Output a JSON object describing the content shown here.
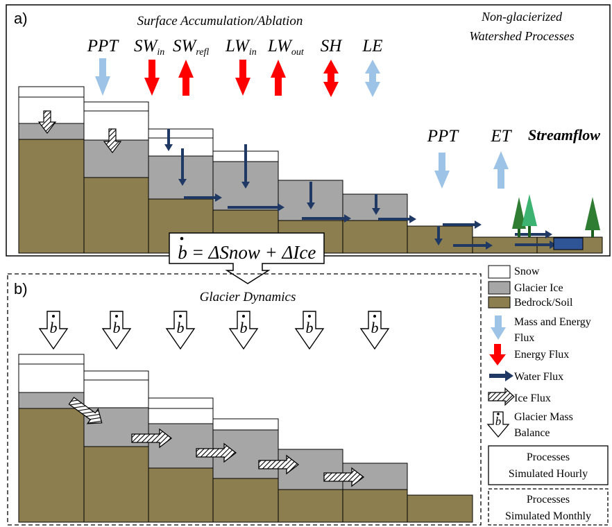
{
  "panel_a": {
    "label": "a)",
    "title": "Surface Accumulation/Ablation",
    "right_title_line1": "Non-glacierized",
    "right_title_line2": "Watershed Processes",
    "fluxes": [
      {
        "base": "PPT",
        "sub": ""
      },
      {
        "base": "SW",
        "sub": "in"
      },
      {
        "base": "SW",
        "sub": "refl"
      },
      {
        "base": "LW",
        "sub": "in"
      },
      {
        "base": "LW",
        "sub": "out"
      },
      {
        "base": "SH",
        "sub": ""
      },
      {
        "base": "LE",
        "sub": ""
      }
    ],
    "watershed_labels": {
      "ppt": "PPT",
      "et": "ET",
      "streamflow": "Streamflow"
    }
  },
  "equation": {
    "lhs": "b",
    "rhs": "= ΔSnow + ΔIce"
  },
  "panel_b": {
    "label": "b)",
    "title": "Glacier Dynamics",
    "mass_balance_symbol": "b"
  },
  "legend": {
    "items": [
      {
        "label": "Snow"
      },
      {
        "label": "Glacier Ice"
      },
      {
        "label": "Bedrock/Soil"
      },
      {
        "label": "Mass and Energy"
      },
      {
        "label": "Flux"
      },
      {
        "label": "Energy Flux"
      },
      {
        "label": "Water Flux"
      },
      {
        "label": "Ice Flux"
      },
      {
        "label": "Glacier Mass"
      },
      {
        "label": "Balance"
      }
    ],
    "hourly_line1": "Processes",
    "hourly_line2": "Simulated Hourly",
    "monthly_line1": "Processes",
    "monthly_line2": "Simulated Monthly"
  },
  "colors": {
    "snow": "#ffffff",
    "ice": "#a6a6a6",
    "soil": "#8c7e4e",
    "mass_energy_flux": "#9dc3e6",
    "energy_flux": "#ff0000",
    "water_flux": "#1f3864",
    "tree_dark": "#2e7d32",
    "tree_light": "#3cb371",
    "stream": "#2f5597"
  }
}
